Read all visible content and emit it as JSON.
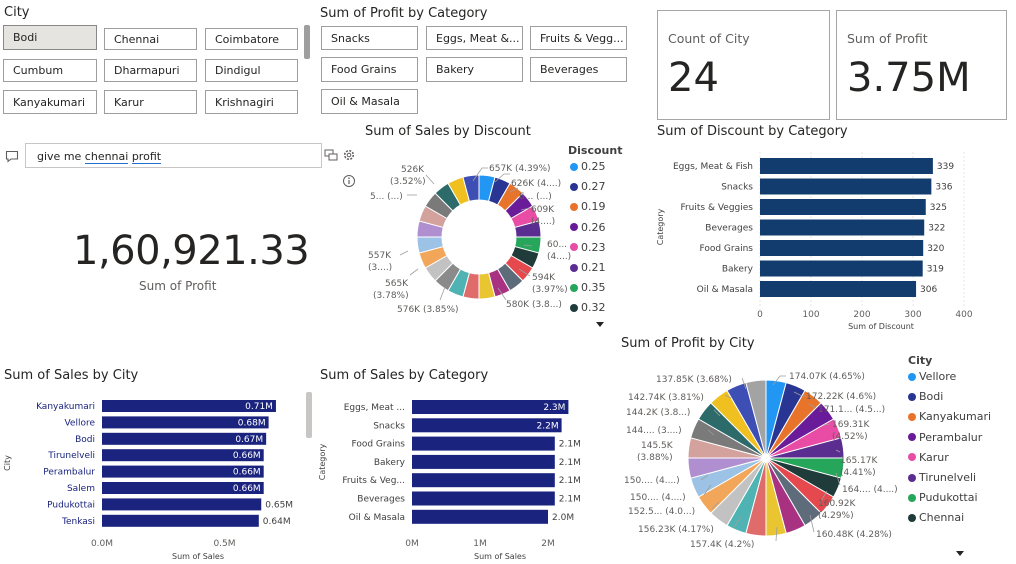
{
  "city_slicer": {
    "title": "City",
    "items": [
      "Bodi",
      "Chennai",
      "Coimbatore",
      "Cumbum",
      "Dharmapuri",
      "Dindigul",
      "Kanyakumari",
      "Karur",
      "Krishnagiri"
    ],
    "selected": "Bodi"
  },
  "category_slicer": {
    "title": "Sum of Profit by Category",
    "items": [
      "Snacks",
      "Eggs, Meat &...",
      "Fruits & Vegg...",
      "Food Grains",
      "Bakery",
      "Beverages",
      "Oil & Masala"
    ]
  },
  "card_count": {
    "label": "Count of City",
    "value": "24"
  },
  "card_profit": {
    "label": "Sum of Profit",
    "value": "3.75M"
  },
  "qa": {
    "query_prefix": "give me ",
    "query_word1": "chennai",
    "query_space": " ",
    "query_word2": "profit",
    "result_value": "1,60,921.33",
    "result_label": "Sum of Profit"
  },
  "colors": {
    "bar_dark": "#123c6e",
    "bar_navy": "#1a237e",
    "selected_bg": "#e6e4e1",
    "underline": "#1f6fd1"
  },
  "donut": {
    "title": "Sum of Sales by Discount",
    "legend_title": "Discount",
    "legend": [
      {
        "label": "0.25",
        "color": "#2196f3"
      },
      {
        "label": "0.27",
        "color": "#283593"
      },
      {
        "label": "0.19",
        "color": "#e8732a"
      },
      {
        "label": "0.26",
        "color": "#6a1b9a"
      },
      {
        "label": "0.23",
        "color": "#e84ca5"
      },
      {
        "label": "0.21",
        "color": "#5c2d91"
      },
      {
        "label": "0.35",
        "color": "#26a65b"
      },
      {
        "label": "0.32",
        "color": "#1f3b3a"
      }
    ],
    "labels": {
      "l657": "657K (4.39%)",
      "l626": "626K (4....)",
      "l6": "6... (...)",
      "l609": "609K",
      "l609b": "(4....)",
      "l60": "60...",
      "l60b": "(4....)",
      "l594": "594K",
      "l594b": "(3.97%)",
      "l580": "580K (3.8...)",
      "l576": "576K (3.85%)",
      "l565": "565K",
      "l565b": "(3.78%)",
      "l557": "557K",
      "l557b": "(3....)",
      "l5": "5... (...)",
      "l526": "526K",
      "l526b": "(3.52%)"
    }
  },
  "discount_bar": {
    "title": "Sum of Discount by Category",
    "ylabel": "Category",
    "xlabel": "Sum of Discount",
    "ticks": [
      "0",
      "100",
      "200",
      "300",
      "400"
    ]
  },
  "sales_city": {
    "title": "Sum of Sales by City",
    "ylabel": "City",
    "xlabel": "Sum of Sales",
    "ticks": [
      "0.0M",
      "0.5M"
    ]
  },
  "sales_cat": {
    "title": "Sum of Sales by Category",
    "ylabel": "Category",
    "xlabel": "Sum of Sales",
    "ticks": [
      "0M",
      "1M",
      "2M"
    ]
  },
  "pie": {
    "title": "Sum of Profit by City",
    "legend_title": "City",
    "legend": [
      {
        "label": "Vellore",
        "color": "#2196f3"
      },
      {
        "label": "Bodi",
        "color": "#283593"
      },
      {
        "label": "Kanyakumari",
        "color": "#e8732a"
      },
      {
        "label": "Perambalur",
        "color": "#6a1b9a"
      },
      {
        "label": "Karur",
        "color": "#e84ca5"
      },
      {
        "label": "Tirunelveli",
        "color": "#5c2d91"
      },
      {
        "label": "Pudukottai",
        "color": "#26a65b"
      },
      {
        "label": "Chennai",
        "color": "#1f3b3a"
      }
    ],
    "labels": {
      "p174": "174.07K (4.65%)",
      "p172": "172.22K (4.6%)",
      "p171": "171.1... (4.5...)",
      "p169": "169.31K",
      "p169b": "(4.52%)",
      "p165": "165.17K",
      "p165b": "(4.41%)",
      "p164": "164.... (4....)",
      "p160": "160.92K",
      "p160b": "(4.29%)",
      "p160_48": "160.48K (4.28%)",
      "p157": "157.4K (4.2%)",
      "p156": "156.23K (4.17%)",
      "p152": "152.5... (4.0...)",
      "p150a": "150.... (4....)",
      "p150b": "150.... (4....)",
      "p145": "145.5K",
      "p145b": "(3.88%)",
      "p144a": "144.... (3....)",
      "p144b": "144.2K (3.8...)",
      "p142": "142.74K (3.81%)",
      "p137": "137.85K (3.68%)"
    }
  },
  "chart_data": [
    {
      "type": "pie",
      "title": "Sum of Sales by Discount",
      "legend_title": "Discount",
      "categories": [
        "0.25",
        "0.27",
        "0.19",
        "0.26",
        "0.23",
        "0.21",
        "0.35",
        "0.32"
      ],
      "data_labels": [
        "657K (4.39%)",
        "626K (4....)",
        "6... (...)",
        "609K (4....)",
        "60... (4....)",
        "594K (3.97%)",
        "580K (3.8...)",
        "576K (3.85%)",
        "565K (3.78%)",
        "557K (3....)",
        "5... (...)",
        "526K (3.52%)"
      ],
      "hole": true,
      "legend_position": "right"
    },
    {
      "type": "bar",
      "orientation": "horizontal",
      "title": "Sum of Discount by Category",
      "categories": [
        "Eggs, Meat & Fish",
        "Snacks",
        "Fruits & Veggies",
        "Beverages",
        "Food Grains",
        "Bakery",
        "Oil & Masala"
      ],
      "values": [
        339,
        336,
        325,
        322,
        320,
        319,
        306
      ],
      "xlabel": "Sum of Discount",
      "ylabel": "Category",
      "xlim": [
        0,
        400
      ]
    },
    {
      "type": "bar",
      "orientation": "horizontal",
      "title": "Sum of Sales by City",
      "categories": [
        "Kanyakumari",
        "Vellore",
        "Bodi",
        "Tirunelveli",
        "Perambalur",
        "Salem",
        "Pudukottai",
        "Tenkasi"
      ],
      "values": [
        0.71,
        0.68,
        0.67,
        0.66,
        0.66,
        0.66,
        0.65,
        0.64
      ],
      "data_labels": [
        "0.71M",
        "0.68M",
        "0.67M",
        "0.66M",
        "0.66M",
        "0.66M",
        "0.65M",
        "0.64M"
      ],
      "xlabel": "Sum of Sales",
      "ylabel": "City",
      "xlim": [
        0,
        0.8
      ]
    },
    {
      "type": "bar",
      "orientation": "horizontal",
      "title": "Sum of Sales by Category",
      "categories": [
        "Eggs, Meat ...",
        "Snacks",
        "Food Grains",
        "Bakery",
        "Fruits & Veg...",
        "Beverages",
        "Oil & Masala"
      ],
      "values": [
        2.3,
        2.2,
        2.1,
        2.1,
        2.1,
        2.1,
        2.0
      ],
      "data_labels": [
        "2.3M",
        "2.2M",
        "2.1M",
        "2.1M",
        "2.1M",
        "2.1M",
        "2.0M"
      ],
      "xlabel": "Sum of Sales",
      "ylabel": "Category",
      "xlim": [
        0,
        2.5
      ]
    },
    {
      "type": "pie",
      "title": "Sum of Profit by City",
      "legend_title": "City",
      "categories": [
        "Vellore",
        "Bodi",
        "Kanyakumari",
        "Perambalur",
        "Karur",
        "Tirunelveli",
        "Pudukottai",
        "Chennai"
      ],
      "values_k": [
        174.07,
        172.22,
        171.1,
        169.31,
        165.17,
        164.0,
        160.92,
        160.48,
        157.4,
        156.23,
        152.5,
        150.0,
        150.0,
        145.5,
        144.0,
        144.2,
        142.74,
        137.85
      ],
      "legend_position": "right"
    }
  ]
}
